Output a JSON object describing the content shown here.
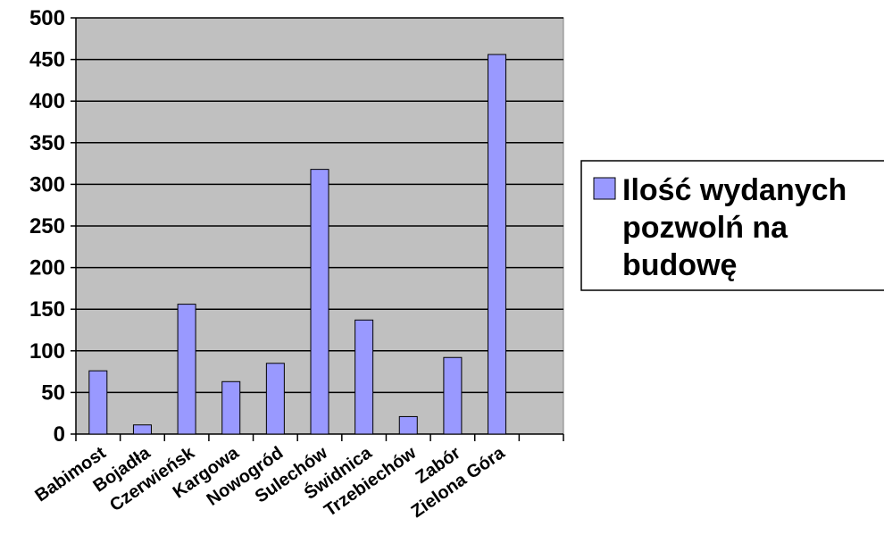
{
  "chart_data": {
    "type": "bar",
    "categories": [
      "Babimost",
      "Bojadła",
      "Czerwieńsk",
      "Kargowa",
      "Nowogród",
      "Sulechów",
      "Świdnica",
      "Trzebiechów",
      "Zabór",
      "Zielona Góra"
    ],
    "series": [
      {
        "name": "Ilość wydanych pozwolń na budowę",
        "values": [
          76,
          11,
          156,
          63,
          85,
          318,
          137,
          21,
          92,
          456
        ],
        "color": "#9999ff"
      }
    ],
    "ylim": [
      0,
      500
    ],
    "yticks": [
      0,
      50,
      100,
      150,
      200,
      250,
      300,
      350,
      400,
      450,
      500
    ],
    "grid": true,
    "plot_background": "#c0c0c0",
    "legend_position": "right",
    "legend_lines": [
      "Ilość wydanych",
      "pozwolń na",
      "budowę"
    ],
    "empty_trailing_slots": 1
  }
}
